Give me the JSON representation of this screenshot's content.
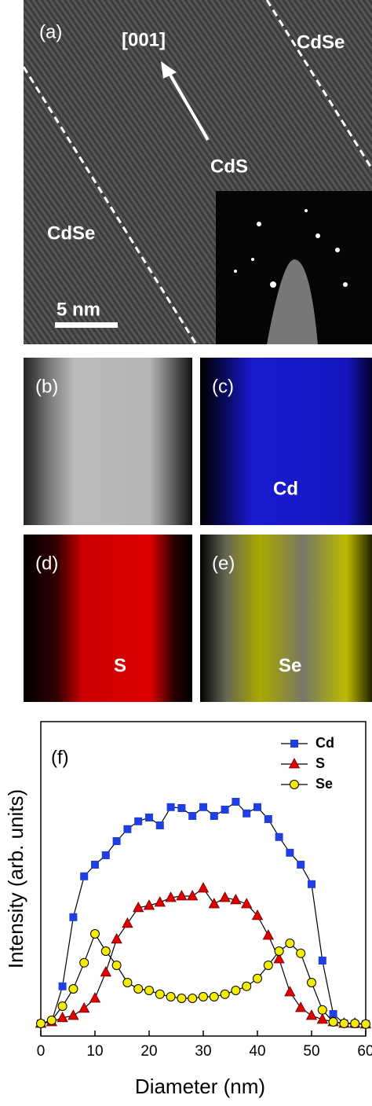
{
  "panels": {
    "a": {
      "label": "(a)",
      "direction": "[001]",
      "region_left": "CdSe",
      "region_center": "CdS",
      "region_right": "CdSe",
      "scale_bar": "5 nm"
    },
    "b": {
      "label": "(b)"
    },
    "c": {
      "label": "(c)",
      "element": "Cd"
    },
    "d": {
      "label": "(d)",
      "element": "S"
    },
    "e": {
      "label": "(e)",
      "element": "Se"
    }
  },
  "chart_data": {
    "type": "line",
    "panel_label": "(f)",
    "xlabel": "Diameter (nm)",
    "ylabel": "Intensity (arb. units)",
    "x": [
      0,
      2,
      4,
      6,
      8,
      10,
      12,
      14,
      16,
      18,
      20,
      22,
      24,
      26,
      28,
      30,
      32,
      34,
      36,
      38,
      40,
      42,
      44,
      46,
      48,
      50,
      52,
      54,
      56,
      58,
      60
    ],
    "xlim": [
      0,
      60
    ],
    "xticks": [
      0,
      10,
      20,
      30,
      40,
      50,
      60
    ],
    "ylim": [
      0,
      100
    ],
    "legend": "upper right",
    "series": [
      {
        "name": "Cd",
        "color": "#1f3fe0",
        "marker": "square",
        "values": [
          4,
          4.5,
          15.8,
          37.8,
          50.8,
          54.5,
          57.5,
          62,
          65.8,
          68.3,
          69.5,
          67,
          72.8,
          72.5,
          70,
          72.8,
          70,
          72,
          74.5,
          70.8,
          72.8,
          69,
          63.3,
          58.3,
          54.5,
          48.3,
          24,
          7,
          4,
          3.8,
          3.8
        ]
      },
      {
        "name": "S",
        "color": "#e00000",
        "marker": "triangle",
        "values": [
          4,
          4.5,
          5.8,
          6.5,
          8.8,
          12,
          20.3,
          30.8,
          35.8,
          40.8,
          41.5,
          42.5,
          44,
          44.5,
          44.5,
          47,
          42,
          44,
          43.3,
          42,
          38.3,
          32,
          24.5,
          14,
          9,
          6.5,
          5.3,
          4.5,
          4,
          4,
          3.8
        ]
      },
      {
        "name": "Se",
        "color": "#f2ec00",
        "marker": "circle",
        "values": [
          4,
          5,
          9.5,
          15,
          23.3,
          32.5,
          27,
          22.5,
          17,
          15,
          14.5,
          13.3,
          12.5,
          12,
          12,
          12.5,
          12.5,
          13.3,
          14.5,
          15.8,
          18.3,
          22.5,
          27,
          29.5,
          26.3,
          17,
          8.3,
          4.5,
          4,
          4,
          3.8
        ]
      }
    ]
  }
}
